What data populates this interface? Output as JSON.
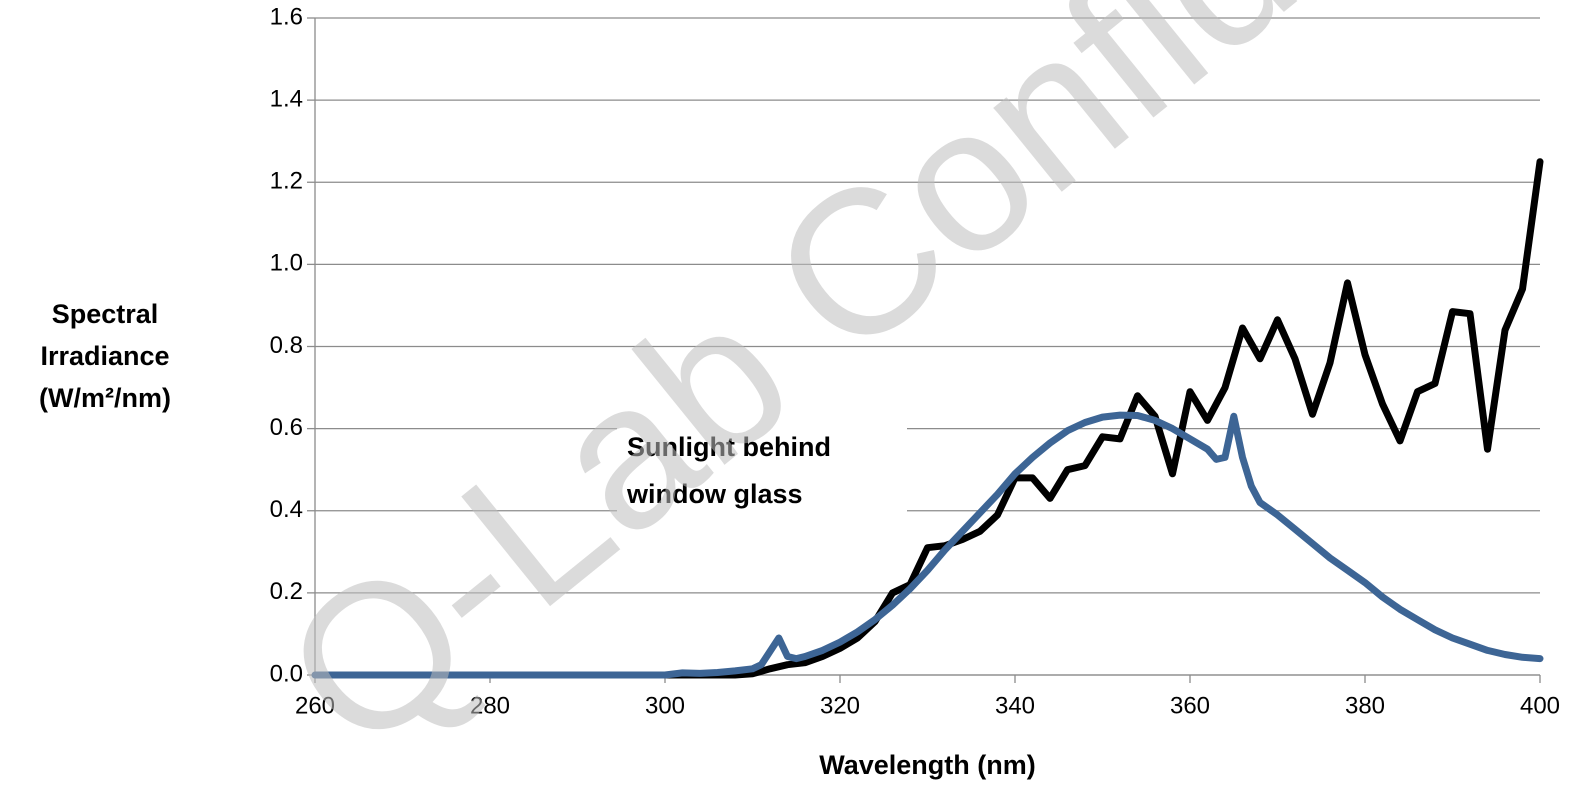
{
  "chart_data": {
    "type": "line",
    "xlabel": "Wavelength (nm)",
    "ylabel": [
      "Spectral",
      "Irradiance",
      "(W/m²/nm)"
    ],
    "annotation": [
      "Sunlight behind",
      "window glass"
    ],
    "watermark": "Q-Lab Confidential",
    "xlim": [
      260,
      400
    ],
    "xticks": [
      260,
      280,
      300,
      320,
      340,
      360,
      380,
      400
    ],
    "ylim": [
      0,
      1.6
    ],
    "yticks": [
      {
        "value": 0,
        "label": "0.0"
      },
      {
        "value": 0.2,
        "label": "0.2"
      },
      {
        "value": 0.4,
        "label": "0.4"
      },
      {
        "value": 0.6,
        "label": "0.6"
      },
      {
        "value": 0.8,
        "label": "0.8"
      },
      {
        "value": 1,
        "label": "1.0"
      },
      {
        "value": 1.2,
        "label": "1.2"
      },
      {
        "value": 1.4,
        "label": "1.4"
      },
      {
        "value": 1.6,
        "label": "1.6"
      }
    ],
    "grid": true,
    "series": [
      {
        "color": "#000000",
        "x": [
          296,
          300,
          304,
          308,
          310,
          312,
          314,
          316,
          318,
          320,
          322,
          324,
          326,
          328,
          330,
          332,
          334,
          336,
          338,
          340,
          342,
          344,
          346,
          348,
          350,
          352,
          354,
          356,
          358,
          360,
          362,
          364,
          366,
          368,
          370,
          372,
          374,
          376,
          378,
          380,
          382,
          384,
          386,
          388,
          390,
          392,
          394,
          396,
          398,
          400
        ],
        "values": [
          0,
          0,
          0,
          0,
          0.003,
          0.015,
          0.025,
          0.03,
          0.045,
          0.065,
          0.09,
          0.13,
          0.2,
          0.22,
          0.31,
          0.315,
          0.33,
          0.35,
          0.39,
          0.48,
          0.48,
          0.43,
          0.5,
          0.51,
          0.58,
          0.575,
          0.68,
          0.63,
          0.49,
          0.69,
          0.62,
          0.7,
          0.845,
          0.77,
          0.865,
          0.77,
          0.635,
          0.76,
          0.955,
          0.78,
          0.66,
          0.57,
          0.69,
          0.71,
          0.885,
          0.88,
          0.55,
          0.84,
          0.94,
          1.25
        ]
      },
      {
        "color": "#3d6595",
        "x": [
          260,
          280,
          296,
          300,
          302,
          304,
          306,
          308,
          310,
          311,
          313,
          314,
          315,
          316,
          318,
          320,
          322,
          324,
          326,
          328,
          330,
          332,
          334,
          336,
          338,
          340,
          342,
          344,
          346,
          348,
          350,
          352,
          354,
          356,
          358,
          360,
          362,
          363,
          364,
          365,
          366,
          367,
          368,
          370,
          372,
          374,
          376,
          378,
          380,
          382,
          384,
          386,
          388,
          390,
          392,
          394,
          396,
          398,
          400
        ],
        "values": [
          0,
          0,
          0,
          0,
          0.005,
          0.004,
          0.006,
          0.01,
          0.015,
          0.025,
          0.09,
          0.045,
          0.04,
          0.045,
          0.06,
          0.08,
          0.105,
          0.135,
          0.17,
          0.21,
          0.255,
          0.305,
          0.35,
          0.395,
          0.44,
          0.49,
          0.53,
          0.565,
          0.595,
          0.615,
          0.628,
          0.633,
          0.632,
          0.62,
          0.6,
          0.575,
          0.55,
          0.525,
          0.53,
          0.63,
          0.53,
          0.46,
          0.42,
          0.39,
          0.355,
          0.32,
          0.285,
          0.255,
          0.225,
          0.19,
          0.16,
          0.135,
          0.11,
          0.09,
          0.075,
          0.06,
          0.05,
          0.043,
          0.04
        ]
      }
    ]
  }
}
